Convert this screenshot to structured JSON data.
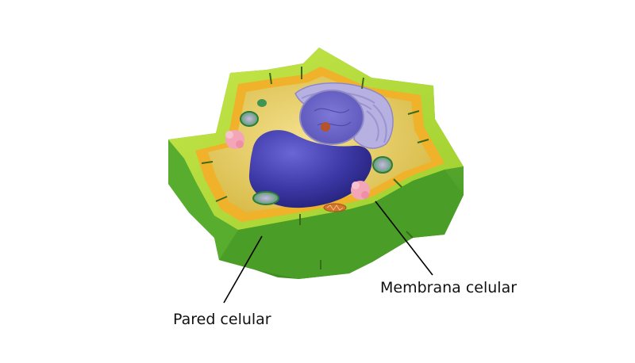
{
  "labels": {
    "cell_membrane": "Membrana celular",
    "cell_wall": "Pared celular"
  },
  "colors": {
    "wall_outer": "#52a82c",
    "wall_top": "#b6dc3a",
    "membrane": "#f2b52c",
    "cytoplasm": "#e8cf6a",
    "nucleus": "#3e3aa8",
    "golgi": "#9e98d4",
    "chloroplast": "#2f8f4a",
    "vesicle": "#f2a3b5",
    "leader_line": "#000000"
  }
}
